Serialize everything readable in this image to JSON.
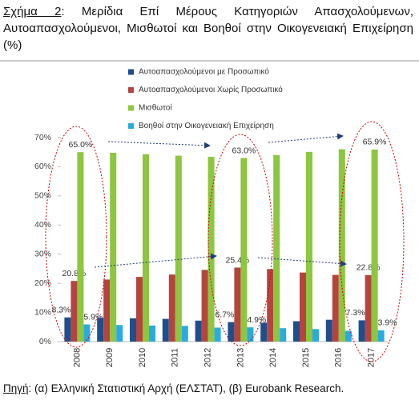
{
  "chart_data": {
    "type": "bar",
    "figure_label": "Σχήμα 2",
    "title": ": Μερίδια Επί Μέρους Κατηγοριών Απασχολούμενων, Αυτοαπασχολούμενοι, Μισθωτοί και Βοηθοί στην Οικογενειακή Επιχείρηση (%)",
    "source_label": "Πηγή",
    "source": ": (α) Ελληνική Στατιστική Αρχή (ΕΛΣΤΑΤ), (β) Eurobank Research.",
    "categories": [
      "2008",
      "2009",
      "2010",
      "2011",
      "2012",
      "2013",
      "2014",
      "2015",
      "2016",
      "2017"
    ],
    "series": [
      {
        "name": "Αυτοαπασχολούμενοι με Προσωπικό",
        "color": "#1f4e8c",
        "values": [
          8.3,
          8.2,
          8.0,
          7.8,
          7.2,
          6.7,
          6.5,
          7.0,
          7.5,
          7.3
        ],
        "value_labels": [
          "8.3%",
          null,
          null,
          null,
          null,
          "6.7%",
          null,
          null,
          null,
          "7.3%"
        ]
      },
      {
        "name": "Αυτοαπασχολούμενοι Χωρίς Προσωπικό",
        "color": "#b5443f",
        "values": [
          20.8,
          21.3,
          22.2,
          23.0,
          24.6,
          25.4,
          24.9,
          23.7,
          22.9,
          22.8
        ],
        "value_labels": [
          "20.8%",
          null,
          null,
          null,
          null,
          "25.4%",
          null,
          null,
          null,
          "22.8%"
        ]
      },
      {
        "name": "Μισθωτοί",
        "color": "#8dc63f",
        "values": [
          65.0,
          64.8,
          64.3,
          63.8,
          63.4,
          63.0,
          64.0,
          65.1,
          66.0,
          65.9
        ],
        "value_labels": [
          "65.0%",
          null,
          null,
          null,
          null,
          "63.0%",
          null,
          null,
          null,
          "65.9%"
        ]
      },
      {
        "name": "Βοηθοί στην Οικογενειακή Επιχείρηση",
        "color": "#29abe2",
        "values": [
          5.9,
          5.7,
          5.5,
          5.4,
          4.8,
          4.9,
          4.6,
          4.3,
          3.7,
          3.9
        ],
        "value_labels": [
          "5.9%",
          null,
          null,
          null,
          null,
          "4.9%",
          null,
          null,
          null,
          "3.9%"
        ]
      }
    ],
    "ylim": [
      0,
      70
    ],
    "yticks": [
      {
        "value": 0,
        "label": "0%"
      },
      {
        "value": 10,
        "label": "10%"
      },
      {
        "value": 20,
        "label": "20%"
      },
      {
        "value": 30,
        "label": "30%"
      },
      {
        "value": 40,
        "label": "40%"
      },
      {
        "value": 50,
        "label": "50%"
      },
      {
        "value": 60,
        "label": "60%"
      },
      {
        "value": 70,
        "label": "70%"
      }
    ],
    "grid": false
  }
}
